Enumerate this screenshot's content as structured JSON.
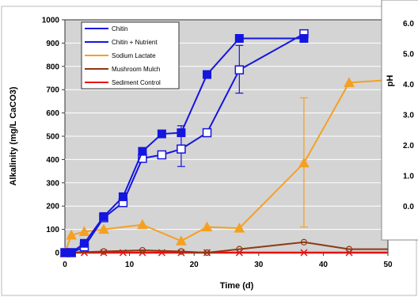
{
  "chart_data": {
    "type": "line",
    "xlabel": "Time (d)",
    "ylabel": "Alkalinity (mg/L CaCO3)",
    "xlim": [
      0,
      50
    ],
    "ylim": [
      0,
      1000
    ],
    "x_ticks": [
      "0",
      "10",
      "20",
      "30",
      "40",
      "50"
    ],
    "y_ticks": [
      "0",
      "100",
      "200",
      "300",
      "400",
      "500",
      "600",
      "700",
      "800",
      "900",
      "1000"
    ],
    "grid": "horizontal",
    "legend_position": "top-left",
    "series": [
      {
        "name": "Chitin",
        "color": "#1515e0",
        "marker": "filled-square",
        "x": [
          0,
          1,
          3,
          6,
          9,
          12,
          15,
          18,
          22,
          27,
          37
        ],
        "y": [
          0,
          0,
          40,
          155,
          240,
          435,
          510,
          515,
          765,
          920,
          920
        ]
      },
      {
        "name": "Chitin + Nutrient",
        "color": "#1515e0",
        "marker": "open-square",
        "x": [
          0,
          1,
          3,
          6,
          9,
          12,
          15,
          18,
          22,
          27,
          37
        ],
        "y": [
          0,
          0,
          25,
          150,
          215,
          405,
          420,
          445,
          515,
          785,
          940
        ],
        "error_bars": [
          {
            "x": 18,
            "low": 370,
            "high": 545
          },
          {
            "x": 27,
            "low": 685,
            "high": 890
          }
        ]
      },
      {
        "name": "Sodium Lactate",
        "color": "#f5a021",
        "marker": "filled-triangle",
        "x": [
          0,
          1,
          3,
          6,
          12,
          18,
          22,
          27,
          37,
          44,
          52
        ],
        "y": [
          0,
          75,
          90,
          100,
          120,
          50,
          110,
          105,
          385,
          730,
          745
        ],
        "error_bars": [
          {
            "x": 37,
            "low": 110,
            "high": 665
          }
        ]
      },
      {
        "name": "Mushroom Mulch",
        "color": "#8b3a14",
        "marker": "open-circle",
        "x": [
          0,
          6,
          12,
          18,
          22,
          27,
          37,
          44,
          52
        ],
        "y": [
          0,
          5,
          10,
          5,
          0,
          15,
          45,
          15,
          15
        ]
      },
      {
        "name": "Sediment Control",
        "color": "#e81010",
        "marker": "x",
        "x": [
          0,
          3,
          6,
          9,
          12,
          15,
          18,
          22,
          27,
          37,
          44,
          52
        ],
        "y": [
          0,
          0,
          0,
          0,
          0,
          0,
          0,
          0,
          0,
          0,
          0,
          0
        ]
      }
    ],
    "overlay_axis": {
      "label": "pH",
      "ticks": [
        "6.0",
        "5.0",
        "4.0",
        "3.0",
        "2.0",
        "1.0",
        "0.0"
      ]
    }
  }
}
